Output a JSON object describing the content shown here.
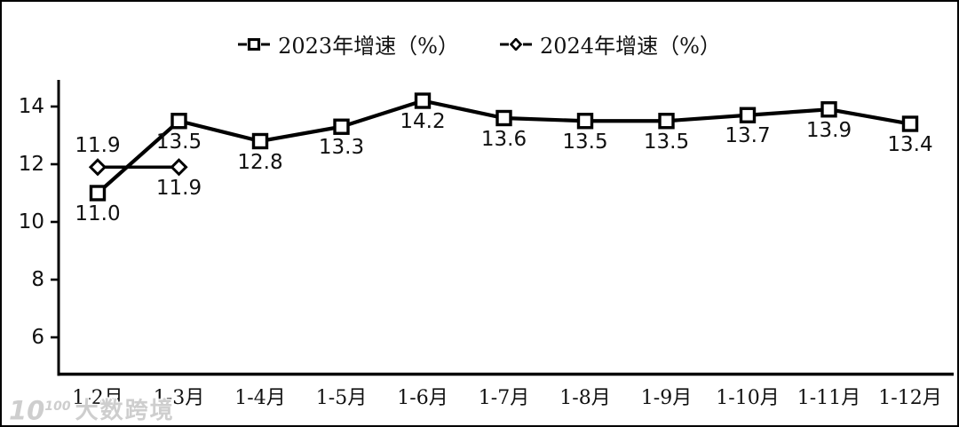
{
  "legend": {
    "items": [
      {
        "label": "2023年增速（%）",
        "marker": "square"
      },
      {
        "label": "2024年增速（%）",
        "marker": "diamond"
      }
    ]
  },
  "watermark": {
    "logo_base": "10",
    "logo_sup": "100",
    "text": "大数跨境"
  },
  "chart_data": {
    "type": "line",
    "title": "",
    "xlabel": "",
    "ylabel": "",
    "grid": false,
    "legend_position": "top-center",
    "line_color": "#000000",
    "categories": [
      "1-2月",
      "1-3月",
      "1-4月",
      "1-5月",
      "1-6月",
      "1-7月",
      "1-8月",
      "1-9月",
      "1-10月",
      "1-11月",
      "1-12月"
    ],
    "y_ticks": [
      6,
      8,
      10,
      12,
      14
    ],
    "ylim": [
      4.7,
      14.9
    ],
    "series": [
      {
        "name": "2023年增速（%）",
        "marker": "square",
        "values": [
          11.0,
          13.5,
          12.8,
          13.3,
          14.2,
          13.6,
          13.5,
          13.5,
          13.7,
          13.9,
          13.4
        ],
        "labels": [
          "11.0",
          "13.5",
          "12.8",
          "13.3",
          "14.2",
          "13.6",
          "13.5",
          "13.5",
          "13.7",
          "13.9",
          "13.4"
        ],
        "label_sides": [
          "below",
          "below",
          "below",
          "below",
          "below",
          "below",
          "below",
          "below",
          "below",
          "below",
          "below"
        ]
      },
      {
        "name": "2024年增速（%）",
        "marker": "diamond",
        "values": [
          11.9,
          11.9
        ],
        "labels": [
          "11.9",
          "11.9"
        ],
        "label_sides": [
          "above",
          "below"
        ]
      }
    ]
  }
}
